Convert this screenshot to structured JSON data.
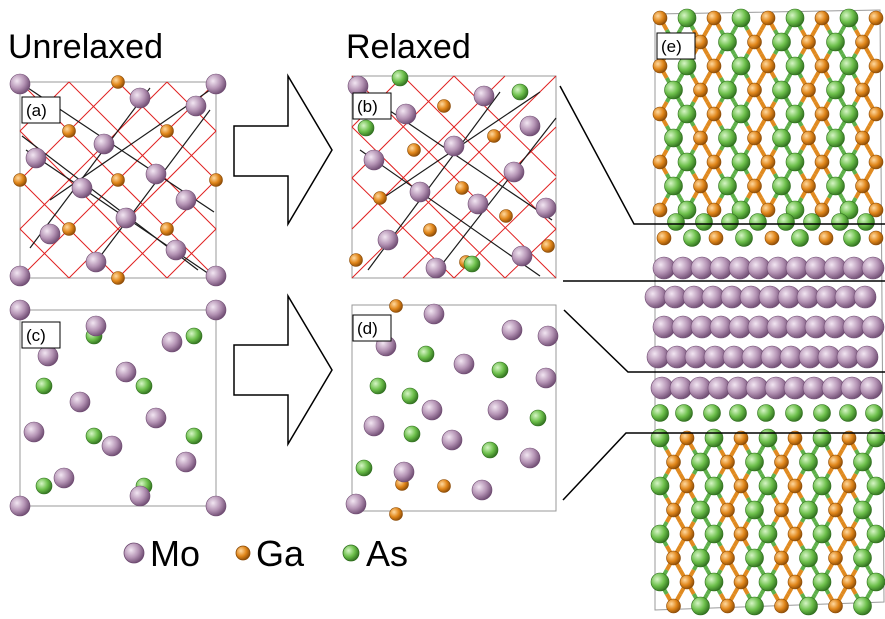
{
  "headings": {
    "unrelaxed": "Unrelaxed",
    "relaxed": "Relaxed"
  },
  "panels": {
    "a": {
      "label": "(a)"
    },
    "b": {
      "label": "(b)"
    },
    "c": {
      "label": "(c)"
    },
    "d": {
      "label": "(d)"
    },
    "e": {
      "label": "(e)"
    }
  },
  "legend": {
    "items": [
      {
        "label": "Mo",
        "color": "#b493b4",
        "icon": "mo-atom-icon"
      },
      {
        "label": "Ga",
        "color": "#e0861a",
        "icon": "ga-atom-icon"
      },
      {
        "label": "As",
        "color": "#6cbf4a",
        "icon": "as-atom-icon"
      }
    ]
  },
  "colors": {
    "mo": "#b493b4",
    "mo_dark": "#7d5a80",
    "ga": "#e0861a",
    "ga_dark": "#a45a0a",
    "as": "#6cbf4a",
    "as_dark": "#3f8a2a",
    "bond_black": "#1a1a1a",
    "bond_red": "#e02020",
    "ga_bond": "#e08a20",
    "as_bond": "#5eb04a"
  }
}
